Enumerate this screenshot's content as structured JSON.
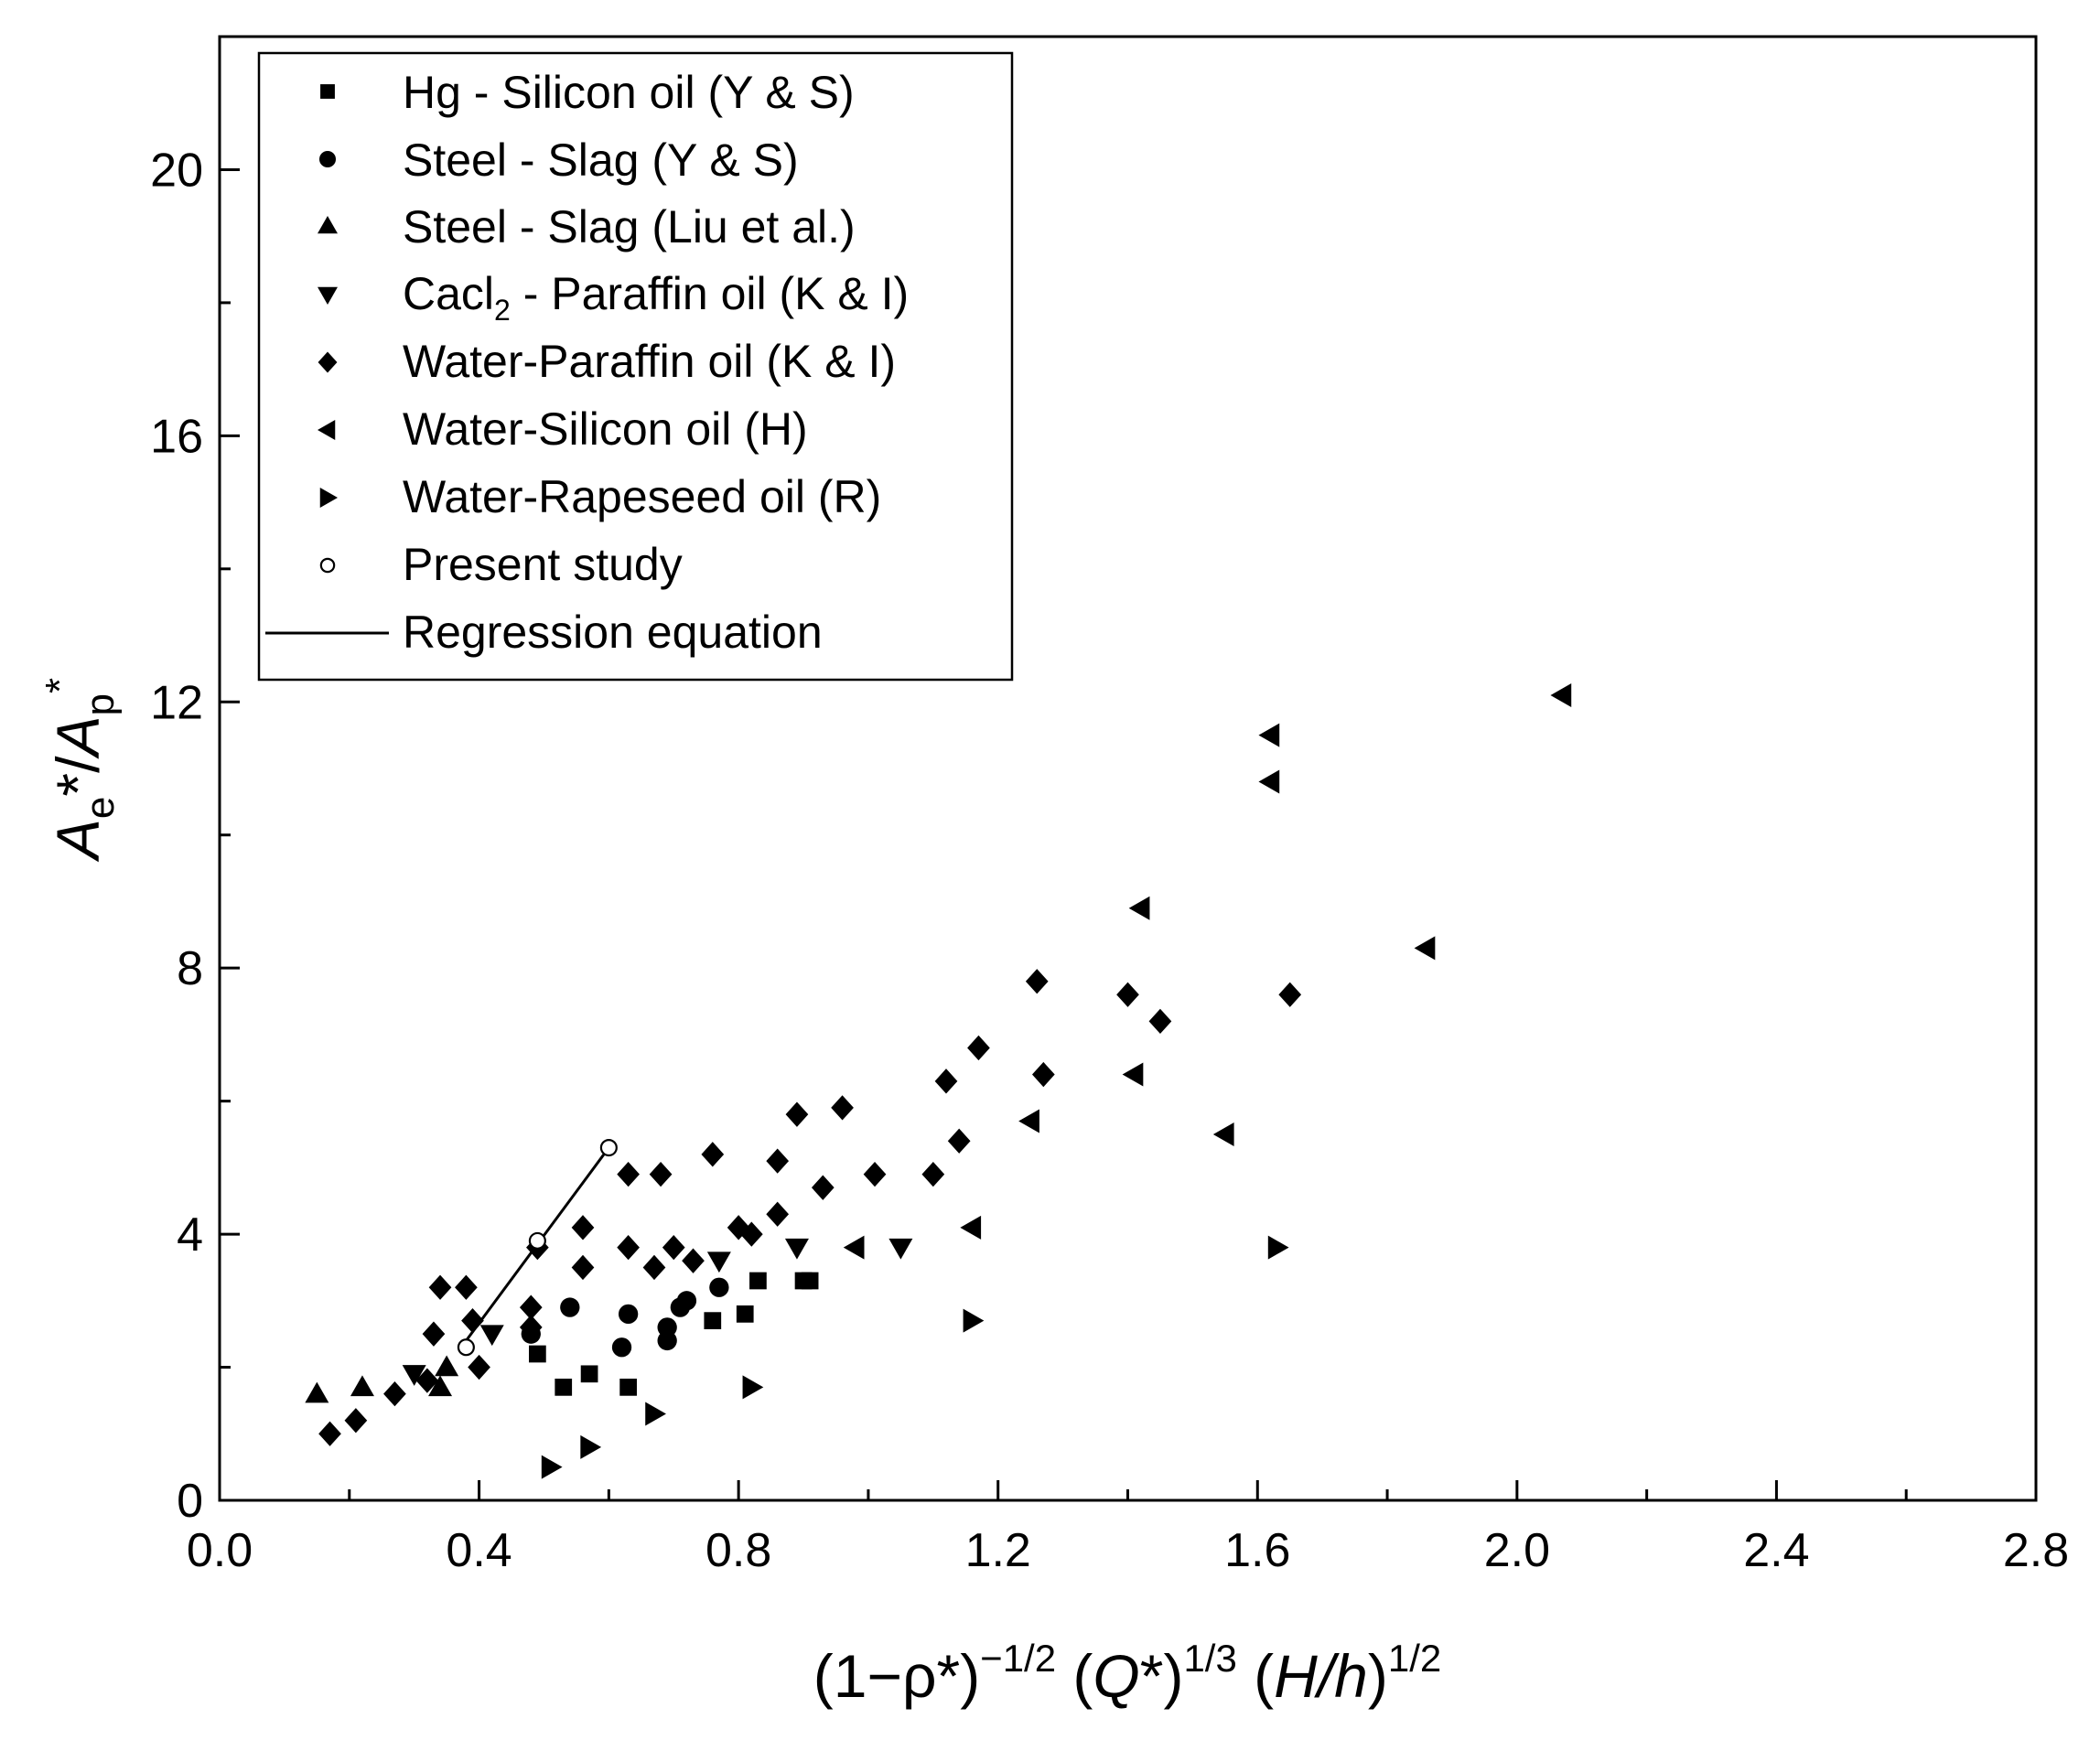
{
  "chart_data": {
    "type": "scatter",
    "title": "",
    "xlabel": "(1−ρ*)⁻¹ᐟ² (Q*)¹ᐟ³ (H/h)¹ᐟ²",
    "xlabel_parts": {
      "base1": "(1−ρ*)",
      "exp1": "−1/2",
      "q": "Q",
      "q_rest": "*)",
      "exp2": "1/3",
      "h_open": " (",
      "hh": "H/h",
      "h_close": ")",
      "exp3": "1/2",
      "q_open": " ("
    },
    "ylabel": "Ae*/Ap*",
    "ylabel_parts": {
      "a1": "A",
      "sub1": "e",
      "mid": "*/",
      "a2": "A",
      "sub2": "p",
      "sup2": "*"
    },
    "xlim": [
      0.0,
      2.8
    ],
    "ylim": [
      0,
      22
    ],
    "x_ticks": [
      "0.0",
      "0.4",
      "0.8",
      "1.2",
      "1.6",
      "2.0",
      "2.4",
      "2.8"
    ],
    "x_tick_values": [
      0.0,
      0.4,
      0.8,
      1.2,
      1.6,
      2.0,
      2.4,
      2.8
    ],
    "y_ticks": [
      "0",
      "4",
      "8",
      "12",
      "16",
      "20"
    ],
    "y_tick_values": [
      0,
      4,
      8,
      12,
      16,
      20
    ],
    "legend_position": "top-left",
    "series": [
      {
        "name": "Hg - Silicon oil (Y & S)",
        "marker": "square",
        "points": [
          [
            0.49,
            2.2
          ],
          [
            0.53,
            1.7
          ],
          [
            0.57,
            1.9
          ],
          [
            0.63,
            1.7
          ],
          [
            0.76,
            2.7
          ],
          [
            0.81,
            2.8
          ],
          [
            0.83,
            3.3
          ],
          [
            0.9,
            3.3
          ],
          [
            0.91,
            3.3
          ]
        ]
      },
      {
        "name": "Steel - Slag (Y & S)",
        "marker": "circle",
        "points": [
          [
            0.48,
            2.5
          ],
          [
            0.54,
            2.9
          ],
          [
            0.62,
            2.3
          ],
          [
            0.63,
            2.8
          ],
          [
            0.69,
            2.4
          ],
          [
            0.69,
            2.6
          ],
          [
            0.71,
            2.9
          ],
          [
            0.72,
            3.0
          ],
          [
            0.77,
            3.2
          ]
        ]
      },
      {
        "name": "Steel - Slag (Liu et al.)",
        "marker": "triangle-up",
        "points": [
          [
            0.15,
            1.6
          ],
          [
            0.22,
            1.7
          ],
          [
            0.34,
            1.7
          ],
          [
            0.35,
            2.0
          ]
        ]
      },
      {
        "name": "Cacl2 - Paraffin oil (K & I)",
        "name_base": "Cacl",
        "name_sub": "2",
        "name_rest": " - Paraffin oil (K & I)",
        "marker": "triangle-down",
        "points": [
          [
            0.3,
            1.9
          ],
          [
            0.42,
            2.5
          ],
          [
            0.77,
            3.6
          ],
          [
            0.89,
            3.8
          ],
          [
            1.05,
            3.8
          ]
        ]
      },
      {
        "name": "Water-Paraffin oil (K & I)",
        "marker": "diamond",
        "points": [
          [
            0.17,
            1.0
          ],
          [
            0.21,
            1.2
          ],
          [
            0.27,
            1.6
          ],
          [
            0.32,
            1.8
          ],
          [
            0.33,
            2.5
          ],
          [
            0.34,
            3.2
          ],
          [
            0.38,
            3.2
          ],
          [
            0.39,
            2.7
          ],
          [
            0.4,
            2.0
          ],
          [
            0.48,
            2.9
          ],
          [
            0.48,
            2.6
          ],
          [
            0.49,
            3.8
          ],
          [
            0.56,
            4.1
          ],
          [
            0.56,
            3.5
          ],
          [
            0.63,
            4.9
          ],
          [
            0.63,
            3.8
          ],
          [
            0.67,
            3.5
          ],
          [
            0.68,
            4.9
          ],
          [
            0.7,
            3.8
          ],
          [
            0.73,
            3.6
          ],
          [
            0.76,
            5.2
          ],
          [
            0.8,
            4.1
          ],
          [
            0.82,
            4.0
          ],
          [
            0.86,
            5.1
          ],
          [
            0.86,
            4.3
          ],
          [
            0.89,
            5.8
          ],
          [
            0.93,
            4.7
          ],
          [
            0.96,
            5.9
          ],
          [
            1.01,
            4.9
          ],
          [
            1.1,
            4.9
          ],
          [
            1.12,
            6.3
          ],
          [
            1.14,
            5.4
          ],
          [
            1.17,
            6.8
          ],
          [
            1.26,
            7.8
          ],
          [
            1.27,
            6.4
          ],
          [
            1.4,
            7.6
          ],
          [
            1.45,
            7.2
          ],
          [
            1.65,
            7.6
          ]
        ]
      },
      {
        "name": "Water-Silicon oil (H)",
        "marker": "triangle-left",
        "points": [
          [
            0.98,
            3.8
          ],
          [
            1.16,
            4.1
          ],
          [
            1.25,
            5.7
          ],
          [
            1.41,
            6.4
          ],
          [
            1.42,
            8.9
          ],
          [
            1.55,
            5.5
          ],
          [
            1.62,
            11.5
          ],
          [
            1.62,
            10.8
          ],
          [
            1.86,
            8.3
          ],
          [
            2.07,
            12.1
          ]
        ]
      },
      {
        "name": "Water-Rapeseed oil (R)",
        "marker": "triangle-right",
        "points": [
          [
            0.51,
            0.5
          ],
          [
            0.57,
            0.8
          ],
          [
            0.67,
            1.3
          ],
          [
            0.82,
            1.7
          ],
          [
            1.16,
            2.7
          ],
          [
            1.63,
            3.8
          ]
        ]
      },
      {
        "name": "Present study",
        "marker": "open-circle",
        "points": [
          [
            0.38,
            2.3
          ],
          [
            0.49,
            3.9
          ],
          [
            0.6,
            5.3
          ]
        ]
      },
      {
        "name": "Regression equation",
        "marker": "line",
        "points": [
          [
            0.38,
            2.4
          ],
          [
            0.6,
            5.3
          ]
        ]
      }
    ]
  }
}
